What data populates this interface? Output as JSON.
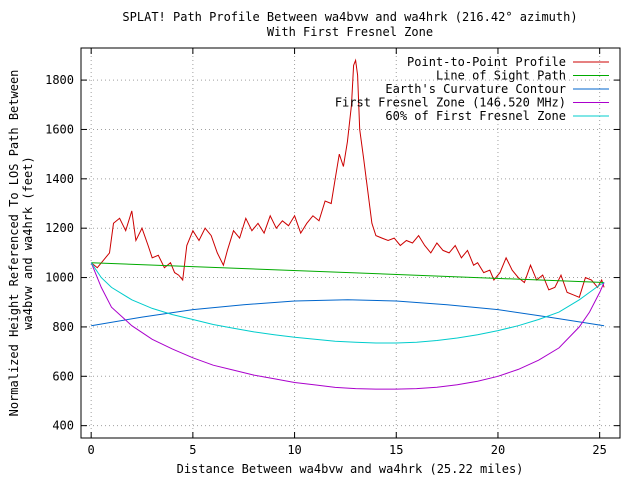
{
  "chart_data": {
    "type": "line",
    "title": "SPLAT! Path Profile Between wa4bvw and wa4hrk (216.42° azimuth)",
    "subtitle": "With First Fresnel Zone",
    "xlabel": "Distance Between wa4bvw and wa4hrk (25.22 miles)",
    "ylabel_line1": "Normalized Height Referenced To LOS Path Between",
    "ylabel_line2": "wa4bvw and wa4hrk (feet)",
    "xlim": [
      -0.5,
      26
    ],
    "ylim": [
      350,
      1930
    ],
    "xticks": [
      0,
      5,
      10,
      15,
      20,
      25
    ],
    "yticks": [
      400,
      600,
      800,
      1000,
      1200,
      1400,
      1600,
      1800
    ],
    "grid": true,
    "legend_position": "top-right",
    "series": [
      {
        "name": "Point-to-Point Profile",
        "color": "#cc0000",
        "x": [
          0,
          0.3,
          0.6,
          0.9,
          1.1,
          1.4,
          1.7,
          2.0,
          2.2,
          2.5,
          2.8,
          3.0,
          3.3,
          3.6,
          3.9,
          4.1,
          4.3,
          4.5,
          4.7,
          5.0,
          5.3,
          5.6,
          5.9,
          6.2,
          6.5,
          6.7,
          7.0,
          7.3,
          7.6,
          7.9,
          8.2,
          8.5,
          8.8,
          9.1,
          9.4,
          9.7,
          10.0,
          10.3,
          10.6,
          10.9,
          11.2,
          11.5,
          11.8,
          12.0,
          12.2,
          12.4,
          12.6,
          12.8,
          12.9,
          13.0,
          13.1,
          13.2,
          13.4,
          13.6,
          13.8,
          14.0,
          14.3,
          14.6,
          14.9,
          15.2,
          15.5,
          15.8,
          16.1,
          16.4,
          16.7,
          17.0,
          17.3,
          17.6,
          17.9,
          18.2,
          18.5,
          18.8,
          19.0,
          19.3,
          19.6,
          19.8,
          20.1,
          20.4,
          20.7,
          21.0,
          21.3,
          21.6,
          21.9,
          22.2,
          22.5,
          22.8,
          23.1,
          23.4,
          23.7,
          24.0,
          24.3,
          24.6,
          24.9,
          25.1,
          25.22
        ],
        "values": [
          1060,
          1040,
          1070,
          1100,
          1220,
          1240,
          1190,
          1270,
          1150,
          1200,
          1130,
          1080,
          1090,
          1040,
          1060,
          1020,
          1010,
          990,
          1130,
          1190,
          1150,
          1200,
          1170,
          1100,
          1050,
          1110,
          1190,
          1160,
          1240,
          1190,
          1220,
          1180,
          1250,
          1200,
          1230,
          1210,
          1250,
          1180,
          1220,
          1250,
          1230,
          1310,
          1300,
          1400,
          1500,
          1450,
          1550,
          1700,
          1860,
          1880,
          1820,
          1600,
          1480,
          1350,
          1220,
          1170,
          1160,
          1150,
          1160,
          1130,
          1150,
          1140,
          1170,
          1130,
          1100,
          1140,
          1110,
          1100,
          1130,
          1080,
          1110,
          1050,
          1060,
          1020,
          1030,
          990,
          1020,
          1080,
          1030,
          1000,
          980,
          1050,
          990,
          1010,
          950,
          960,
          1010,
          940,
          930,
          920,
          1000,
          990,
          960,
          990,
          960
        ]
      },
      {
        "name": "Line of Sight Path",
        "color": "#00aa00",
        "x": [
          0,
          25.22
        ],
        "values": [
          1060,
          980
        ]
      },
      {
        "name": "Earth's Curvature Contour",
        "color": "#0066cc",
        "x": [
          0,
          2.5,
          5,
          7.5,
          10,
          12.61,
          15,
          17.5,
          20,
          22.5,
          25.22
        ],
        "values": [
          805,
          840,
          870,
          890,
          905,
          910,
          905,
          890,
          870,
          840,
          805
        ]
      },
      {
        "name": "First Fresnel Zone (146.520 MHz)",
        "color": "#aa00cc",
        "x": [
          0,
          0.5,
          1,
          2,
          3,
          4,
          5,
          6,
          7,
          8,
          9,
          10,
          11,
          12,
          13,
          14,
          15,
          16,
          17,
          18,
          19,
          20,
          21,
          22,
          23,
          24,
          24.5,
          25,
          25.22
        ],
        "values": [
          1060,
          960,
          880,
          805,
          750,
          710,
          675,
          645,
          625,
          605,
          590,
          575,
          565,
          555,
          550,
          548,
          548,
          550,
          556,
          566,
          580,
          600,
          628,
          665,
          715,
          800,
          860,
          940,
          980
        ]
      },
      {
        "name": "60% of First Fresnel Zone",
        "color": "#00cccc",
        "x": [
          0,
          0.5,
          1,
          2,
          3,
          4,
          5,
          6,
          7,
          8,
          9,
          10,
          11,
          12,
          13,
          14,
          15,
          16,
          17,
          18,
          19,
          20,
          21,
          22,
          23,
          24,
          24.5,
          25,
          25.22
        ],
        "values": [
          1060,
          1000,
          960,
          910,
          875,
          850,
          830,
          810,
          795,
          780,
          768,
          758,
          750,
          742,
          738,
          735,
          735,
          738,
          745,
          755,
          768,
          785,
          805,
          830,
          860,
          910,
          940,
          970,
          980
        ]
      }
    ]
  }
}
